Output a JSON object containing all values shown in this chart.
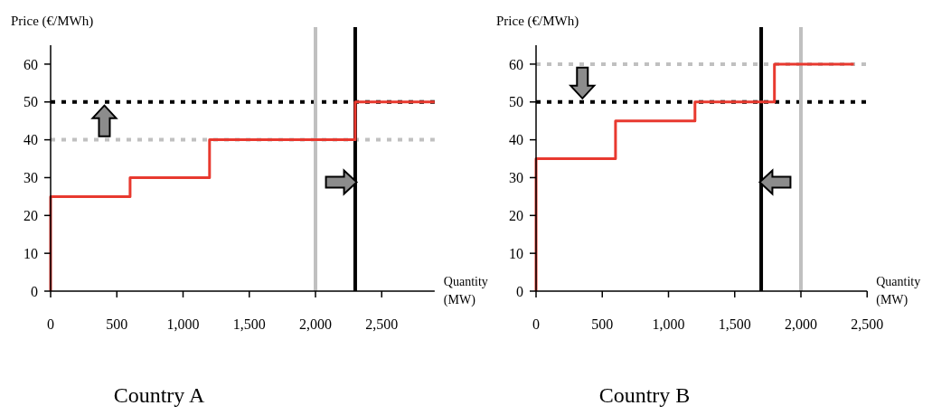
{
  "chart_data": [
    {
      "type": "step",
      "title": "Country A",
      "xlabel": "Quantity\n(MW)",
      "ylabel": "Price (€/MWh)",
      "xlim": [
        0,
        2900
      ],
      "ylim": [
        0,
        65
      ],
      "xticks": [
        {
          "value": 0,
          "label": "0"
        },
        500,
        {
          "value": 1000,
          "label": "1,000"
        },
        {
          "value": 1500,
          "label": "1,500"
        },
        {
          "value": 2000,
          "label": "2,000"
        },
        {
          "value": 2500,
          "label": "2,500"
        }
      ],
      "yticks": [
        {
          "value": 0,
          "label": "0"
        },
        10,
        20,
        30,
        40,
        50,
        60
      ],
      "grid": false,
      "line_style": "solid",
      "marker": "none",
      "series": [
        {
          "color": "#e8392f",
          "x": [
            0,
            0,
            600,
            1200,
            2300,
            2900
          ],
          "values": [
            0,
            25,
            30,
            40,
            50,
            50
          ]
        }
      ],
      "ref_lines": [
        {
          "axis": "y",
          "value": 40,
          "color": "#c0c0c0",
          "line_style": "dotted"
        },
        {
          "axis": "y",
          "value": 50,
          "color": "#000000",
          "line_style": "dotted"
        },
        {
          "axis": "x",
          "value": 2000,
          "color": "#c0c0c0",
          "line_style": "solid"
        },
        {
          "axis": "x",
          "value": 2300,
          "color": "#000000",
          "line_style": "solid"
        }
      ]
    },
    {
      "type": "step",
      "title": "Country B",
      "xlabel": "Quantity\n(MW)",
      "ylabel": "Price (€/MWh)",
      "xlim": [
        0,
        2500
      ],
      "ylim": [
        0,
        65
      ],
      "xticks": [
        {
          "value": 0,
          "label": "0"
        },
        500,
        {
          "value": 1000,
          "label": "1,000"
        },
        {
          "value": 1500,
          "label": "1,500"
        },
        {
          "value": 2000,
          "label": "2,000"
        },
        {
          "value": 2500,
          "label": "2,500"
        }
      ],
      "yticks": [
        {
          "value": 0,
          "label": "0"
        },
        10,
        20,
        30,
        40,
        50,
        60
      ],
      "grid": false,
      "line_style": "solid",
      "marker": "none",
      "series": [
        {
          "color": "#e8392f",
          "x": [
            0,
            0,
            600,
            1200,
            1800,
            2400
          ],
          "values": [
            0,
            35,
            45,
            50,
            60,
            60
          ]
        }
      ],
      "ref_lines": [
        {
          "axis": "y",
          "value": 60,
          "color": "#c0c0c0",
          "line_style": "dotted"
        },
        {
          "axis": "y",
          "value": 50,
          "color": "#000000",
          "line_style": "dotted"
        },
        {
          "axis": "x",
          "value": 2000,
          "color": "#c0c0c0",
          "line_style": "solid"
        },
        {
          "axis": "x",
          "value": 1700,
          "color": "#000000",
          "line_style": "solid"
        }
      ]
    }
  ]
}
